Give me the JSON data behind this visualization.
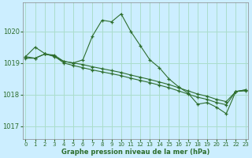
{
  "title": "Graphe pression niveau de la mer (hPa)",
  "bg_color": "#cceeff",
  "grid_color": "#aaddcc",
  "line_color": "#2d6e2d",
  "x_ticks": [
    0,
    1,
    2,
    3,
    4,
    5,
    6,
    7,
    8,
    9,
    10,
    11,
    12,
    13,
    14,
    15,
    16,
    17,
    18,
    19,
    20,
    21,
    22,
    23
  ],
  "y_ticks": [
    1017,
    1018,
    1019,
    1020
  ],
  "ylim": [
    1016.6,
    1020.9
  ],
  "xlim": [
    -0.3,
    23.3
  ],
  "series1": [
    1019.2,
    1019.5,
    1019.3,
    1019.2,
    1019.05,
    1019.0,
    1019.1,
    1019.85,
    1020.35,
    1020.3,
    1020.55,
    1020.0,
    1019.55,
    1019.1,
    1018.85,
    1018.5,
    1018.25,
    1018.05,
    1017.7,
    1017.75,
    1017.6,
    1017.4,
    1018.1,
    1018.15
  ],
  "series2": [
    1019.2,
    1019.15,
    1019.28,
    1019.25,
    1019.05,
    1019.0,
    1018.95,
    1018.88,
    1018.82,
    1018.76,
    1018.7,
    1018.62,
    1018.55,
    1018.48,
    1018.4,
    1018.32,
    1018.22,
    1018.12,
    1018.02,
    1017.95,
    1017.85,
    1017.78,
    1018.1,
    1018.15
  ],
  "series3": [
    1019.15,
    1019.15,
    1019.28,
    1019.22,
    1019.0,
    1018.92,
    1018.85,
    1018.78,
    1018.72,
    1018.66,
    1018.6,
    1018.52,
    1018.45,
    1018.38,
    1018.3,
    1018.22,
    1018.12,
    1018.02,
    1017.92,
    1017.85,
    1017.75,
    1017.68,
    1018.1,
    1018.12
  ]
}
